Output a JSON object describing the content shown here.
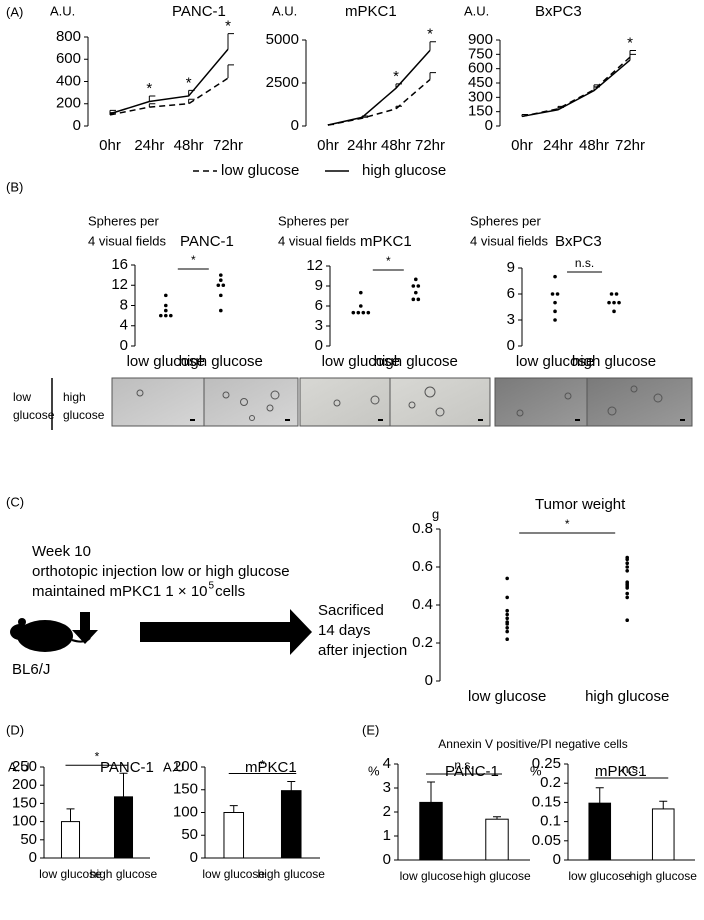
{
  "panels": [
    "(A)",
    "(B)",
    "(C)",
    "(D)",
    "(E)"
  ],
  "sphere_images": {
    "labels": [
      "low glucose",
      "high glucose"
    ]
  },
  "schematic": {
    "lines": [
      "Week 10",
      "orthotopic injection low or high glucose"
    ],
    "cells_line": {
      "prefix": "maintained mPKC1 1 × 10",
      "superscript": "5",
      "suffix": " cells"
    },
    "mouse": "BL6/J",
    "outcome": [
      "Sacrificed",
      "14 days",
      "after injection"
    ]
  },
  "annexin_heading": "Annexin V positive/PI negative cells",
  "chart_data": [
    {
      "type": "line",
      "title": "PANC-1",
      "y_label": "A.U.",
      "categories": [
        "0hr",
        "24hr",
        "48hr",
        "72hr"
      ],
      "ylim": [
        0,
        800
      ],
      "yticks": [
        0,
        200,
        400,
        600,
        800
      ],
      "significance": [
        null,
        "*",
        "*",
        "*"
      ],
      "series": [
        {
          "name": "low glucose",
          "line_style": "dashed",
          "color": "#000000",
          "values": [
            100,
            170,
            200,
            430
          ],
          "errors": [
            20,
            30,
            40,
            120
          ]
        },
        {
          "name": "high glucose",
          "line_style": "solid",
          "color": "#000000",
          "values": [
            110,
            220,
            270,
            690
          ],
          "errors": [
            30,
            50,
            50,
            140
          ]
        }
      ]
    },
    {
      "type": "line",
      "title": "mPKC1",
      "y_label": "A.U.",
      "categories": [
        "0hr",
        "24hr",
        "48hr",
        "72hr"
      ],
      "ylim": [
        0,
        5000
      ],
      "yticks": [
        0,
        2500,
        5000
      ],
      "significance": [
        null,
        null,
        "*",
        "*"
      ],
      "series": [
        {
          "line_style": "dashed",
          "color": "#000000",
          "values": [
            50,
            450,
            1000,
            2700
          ],
          "errors": [
            30,
            60,
            150,
            400
          ]
        },
        {
          "line_style": "solid",
          "color": "#000000",
          "values": [
            60,
            500,
            2200,
            4400
          ],
          "errors": [
            30,
            80,
            250,
            500
          ]
        }
      ]
    },
    {
      "type": "line",
      "title": "BxPC3",
      "y_label": "A.U.",
      "categories": [
        "0hr",
        "24hr",
        "48hr",
        "72hr"
      ],
      "ylim": [
        0,
        900
      ],
      "yticks": [
        0,
        150,
        300,
        450,
        600,
        750,
        900
      ],
      "significance": [
        null,
        null,
        null,
        "*"
      ],
      "series": [
        {
          "line_style": "dashed",
          "color": "#000000",
          "values": [
            100,
            180,
            380,
            720
          ],
          "errors": [
            20,
            25,
            50,
            70
          ]
        },
        {
          "line_style": "solid",
          "color": "#000000",
          "values": [
            100,
            170,
            370,
            690
          ],
          "errors": [
            20,
            25,
            40,
            60
          ]
        }
      ]
    },
    {
      "type": "strip",
      "title": "PANC-1",
      "y_label": [
        "Spheres per",
        "4 visual fields"
      ],
      "categories": [
        "low glucose",
        "high glucose"
      ],
      "ylim": [
        0,
        16
      ],
      "yticks": [
        0,
        4,
        8,
        12,
        16
      ],
      "comparison": "*",
      "points": [
        [
          6,
          6,
          6,
          7,
          8,
          10
        ],
        [
          7,
          10,
          12,
          12,
          13,
          14
        ]
      ]
    },
    {
      "type": "strip",
      "title": "mPKC1",
      "y_label": [
        "Spheres per",
        "4 visual fields"
      ],
      "categories": [
        "low glucose",
        "high glucose"
      ],
      "ylim": [
        0,
        12
      ],
      "yticks": [
        0,
        3,
        6,
        9,
        12
      ],
      "comparison": "*",
      "points": [
        [
          5,
          5,
          5,
          5,
          6,
          8
        ],
        [
          7,
          7,
          8,
          9,
          9,
          10
        ]
      ]
    },
    {
      "type": "strip",
      "title": "BxPC3",
      "y_label": [
        "Spheres per",
        "4 visual fields"
      ],
      "categories": [
        "low glucose",
        "high glucose"
      ],
      "ylim": [
        0,
        9
      ],
      "yticks": [
        0,
        3,
        6,
        9
      ],
      "comparison": "n.s.",
      "points": [
        [
          3,
          4,
          5,
          6,
          6,
          8
        ],
        [
          4,
          5,
          5,
          5,
          6,
          6
        ]
      ]
    },
    {
      "type": "strip",
      "title": "Tumor weight",
      "y_label": "g",
      "categories": [
        "low glucose",
        "high glucose"
      ],
      "ylim": [
        0,
        0.8
      ],
      "yticks": [
        0,
        0.2,
        0.4,
        0.6,
        0.8
      ],
      "comparison": "*",
      "points": [
        [
          0.22,
          0.26,
          0.28,
          0.3,
          0.31,
          0.33,
          0.35,
          0.37,
          0.44,
          0.54
        ],
        [
          0.32,
          0.44,
          0.46,
          0.49,
          0.5,
          0.51,
          0.52,
          0.58,
          0.6,
          0.62,
          0.64,
          0.65
        ]
      ]
    },
    {
      "type": "bar",
      "title": "PANC-1",
      "y_label": "A.U",
      "categories": [
        "low glucose",
        "high glucose"
      ],
      "ylim": [
        0,
        250
      ],
      "yticks": [
        0,
        50,
        100,
        150,
        200,
        250
      ],
      "comparison": "*",
      "values": [
        100,
        168
      ],
      "errors": [
        35,
        65
      ],
      "colors": [
        "#ffffff",
        "#000000"
      ]
    },
    {
      "type": "bar",
      "title": "mPKC1",
      "y_label": "A.U",
      "categories": [
        "low glucose",
        "high glucose"
      ],
      "ylim": [
        0,
        200
      ],
      "yticks": [
        0,
        50,
        100,
        150,
        200
      ],
      "comparison": "*",
      "values": [
        100,
        148
      ],
      "errors": [
        15,
        20
      ],
      "colors": [
        "#ffffff",
        "#000000"
      ]
    },
    {
      "type": "bar",
      "title": "PANC-1",
      "y_label": "%",
      "categories": [
        "low glucose",
        "high glucose"
      ],
      "ylim": [
        0,
        4
      ],
      "yticks": [
        0,
        1,
        2,
        3,
        4
      ],
      "comparison": "n.s.",
      "values": [
        2.4,
        1.7
      ],
      "errors": [
        0.85,
        0.1
      ],
      "colors": [
        "#000000",
        "#ffffff"
      ]
    },
    {
      "type": "bar",
      "title": "mPKC1",
      "y_label": "%",
      "categories": [
        "low glucose",
        "high glucose"
      ],
      "ylim": [
        0,
        0.25
      ],
      "yticks": [
        0,
        0.05,
        0.1,
        0.15,
        0.2,
        0.25
      ],
      "comparison": "n.s.",
      "values": [
        0.148,
        0.133
      ],
      "errors": [
        0.04,
        0.02
      ],
      "colors": [
        "#000000",
        "#ffffff"
      ]
    }
  ]
}
